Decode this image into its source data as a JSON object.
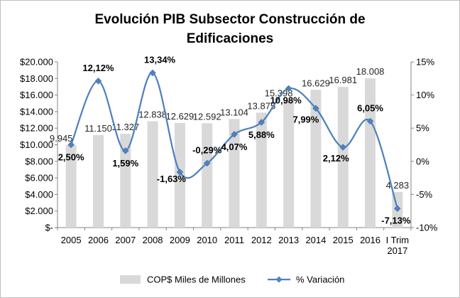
{
  "chart_data": {
    "type": "bar",
    "title_lines": [
      "Evolución PIB Subsector Construcción de",
      "Edificaciones"
    ],
    "categories": [
      "2005",
      "2006",
      "2007",
      "2008",
      "2009",
      "2010",
      "2011",
      "2012",
      "2013",
      "2014",
      "2015",
      "2016",
      "I Trim 2017"
    ],
    "category_lines": [
      [
        "2005"
      ],
      [
        "2006"
      ],
      [
        "2007"
      ],
      [
        "2008"
      ],
      [
        "2009"
      ],
      [
        "2010"
      ],
      [
        "2011"
      ],
      [
        "2012"
      ],
      [
        "2013"
      ],
      [
        "2014"
      ],
      [
        "2015"
      ],
      [
        "2016"
      ],
      [
        "I Trim",
        "2017"
      ]
    ],
    "series": [
      {
        "name": "COP$ Miles de Millones",
        "type": "bar",
        "axis": "left",
        "color": "#d9d9d9",
        "values": [
          9945,
          11150,
          11327,
          12838,
          12629,
          12592,
          13104,
          13875,
          15398,
          16629,
          16981,
          18008,
          4283
        ],
        "labels": [
          "9.945",
          "11.150",
          "11.327",
          "12.838",
          "12.629",
          "12.592",
          "13.104",
          "13.875",
          "15.398",
          "16.629",
          "16.981",
          "18.008",
          "4.283"
        ]
      },
      {
        "name": "% Variación",
        "type": "line",
        "axis": "right",
        "color": "#4f81bd",
        "values": [
          2.5,
          12.12,
          1.59,
          13.34,
          -1.63,
          -0.29,
          4.07,
          5.88,
          10.98,
          7.99,
          2.12,
          6.05,
          -7.13
        ],
        "labels": [
          "2,50%",
          "12,12%",
          "1,59%",
          "13,34%",
          "-1,63%",
          "-0,29%",
          "4,07%",
          "5,88%",
          "10,98%",
          "7,99%",
          "2,12%",
          "6,05%",
          "-7,13%"
        ]
      }
    ],
    "y_left": {
      "min": 0,
      "max": 20000,
      "ticks": [
        0,
        2000,
        4000,
        6000,
        8000,
        10000,
        12000,
        14000,
        16000,
        18000,
        20000
      ],
      "tick_labels": [
        "$-",
        "$2.000",
        "$4.000",
        "$6.000",
        "$8.000",
        "$10.000",
        "$12.000",
        "$14.000",
        "$16.000",
        "$18.000",
        "$20.000"
      ]
    },
    "y_right": {
      "min": -10,
      "max": 15,
      "ticks": [
        -10,
        -5,
        0,
        5,
        10,
        15
      ],
      "tick_labels": [
        "-10%",
        "-5%",
        "0%",
        "5%",
        "10%",
        "15%"
      ]
    },
    "grid": false,
    "legend_position": "bottom"
  }
}
